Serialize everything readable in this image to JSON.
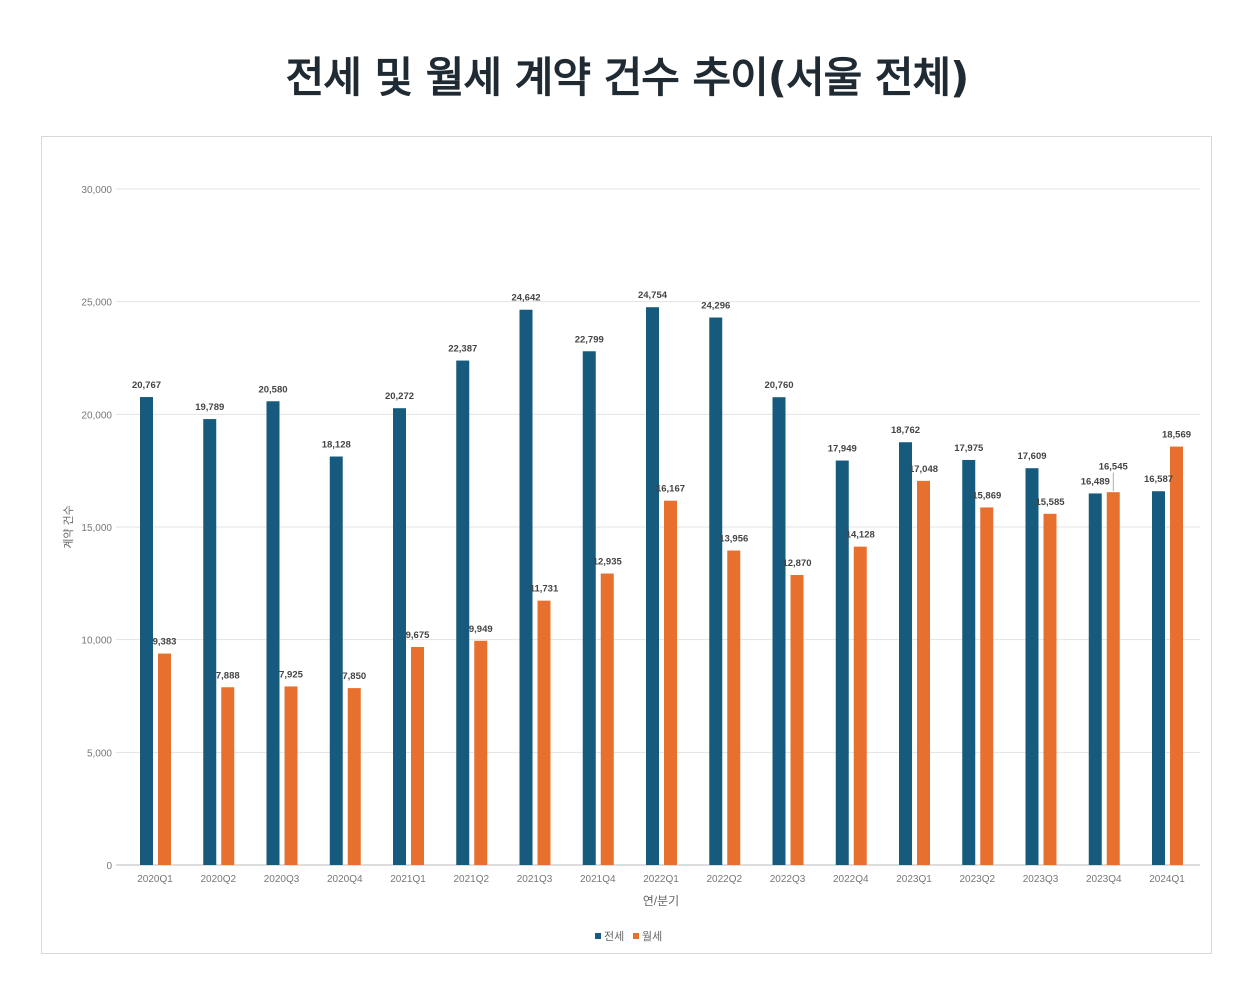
{
  "chart_data": {
    "type": "bar",
    "title": "전세 및 월세 계약 건수 추이(서울 전체)",
    "xlabel": "연/분기",
    "ylabel": "계약 건수",
    "ylim": [
      0,
      30000
    ],
    "yticks": [
      0,
      5000,
      10000,
      15000,
      20000,
      25000,
      30000
    ],
    "grid": true,
    "legend_position": "bottom",
    "categories": [
      "2020Q1",
      "2020Q2",
      "2020Q3",
      "2020Q4",
      "2021Q1",
      "2021Q2",
      "2021Q3",
      "2021Q4",
      "2022Q1",
      "2022Q2",
      "2022Q3",
      "2022Q4",
      "2023Q1",
      "2023Q2",
      "2023Q3",
      "2023Q4",
      "2024Q1"
    ],
    "series": [
      {
        "name": "전세",
        "color": "#165a7e",
        "values": [
          20767,
          19789,
          20580,
          18128,
          20272,
          22387,
          24642,
          22799,
          24754,
          24296,
          20760,
          17949,
          18762,
          17975,
          17609,
          16489,
          16587
        ]
      },
      {
        "name": "월세",
        "color": "#e8702f",
        "values": [
          9383,
          7888,
          7925,
          7850,
          9675,
          9949,
          11731,
          12935,
          16167,
          13956,
          12870,
          14128,
          17048,
          15869,
          15585,
          16545,
          18569
        ]
      }
    ]
  }
}
